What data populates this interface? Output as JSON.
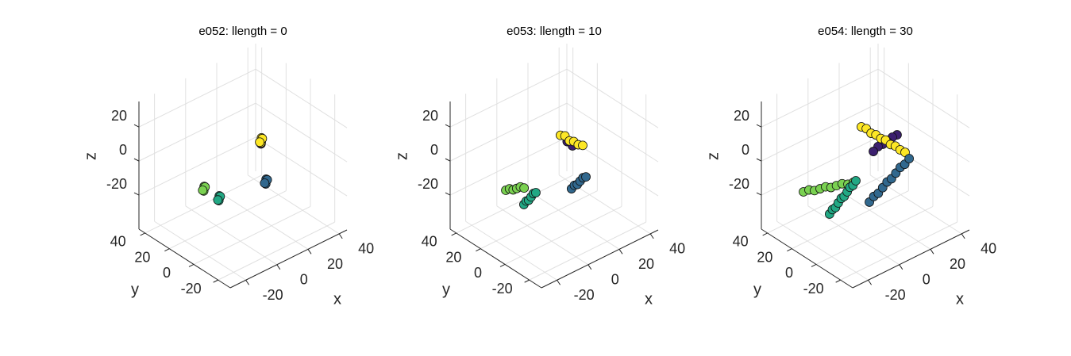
{
  "chart_data": [
    {
      "type": "scatter3d",
      "title": "e052: llength = 0",
      "xlabel": "x",
      "ylabel": "y",
      "zlabel": "z",
      "xlim": [
        -30,
        45
      ],
      "ylim": [
        -30,
        45
      ],
      "zlim": [
        -40,
        35
      ],
      "xticks": [
        -20,
        0,
        20,
        40
      ],
      "yticks": [
        -20,
        0,
        20,
        40
      ],
      "zticks": [
        -20,
        0,
        20
      ],
      "grid": true,
      "series": [
        {
          "color": "#3b1f6e",
          "x": [
            11,
            11.5,
            10.5
          ],
          "y": [
            -3,
            -2.5,
            -3.5
          ],
          "z": [
            14.5,
            15,
            14
          ]
        },
        {
          "color": "#fde725",
          "x": [
            10.4,
            11.2,
            9.6,
            10.8,
            9.9
          ],
          "y": [
            -3.8,
            -3,
            -4.5,
            -4.2,
            -3.2
          ],
          "z": [
            16.2,
            17,
            15.5,
            17.3,
            15.2
          ]
        },
        {
          "color": "#31688e",
          "x": [
            21.3,
            22,
            20.6,
            21.8,
            20.9
          ],
          "y": [
            6.2,
            7,
            5.5,
            5.8,
            6.8
          ],
          "z": [
            -17.5,
            -16.8,
            -18.2,
            -16.5,
            -18.5
          ]
        },
        {
          "color": "#7ad151",
          "x": [
            -5.2,
            -4.5,
            -5.9,
            -4.8,
            -5.6
          ],
          "y": [
            23.3,
            24,
            22.6,
            22.9,
            23.8
          ],
          "z": [
            -17.5,
            -16.8,
            -18.2,
            -16.5,
            -18.5
          ]
        },
        {
          "color": "#22a884",
          "x": [
            -1.5,
            -0.8,
            -2.2,
            -1.1,
            -1.9
          ],
          "y": [
            15.6,
            16.3,
            14.9,
            15.2,
            16.1
          ],
          "z": [
            -21.2,
            -20.5,
            -22,
            -20.2,
            -22.3
          ]
        }
      ]
    },
    {
      "type": "scatter3d",
      "title": "e053: llength = 10",
      "xlabel": "x",
      "ylabel": "y",
      "zlabel": "z",
      "xlim": [
        -30,
        45
      ],
      "ylim": [
        -30,
        45
      ],
      "zlim": [
        -40,
        35
      ],
      "xticks": [
        -20,
        0,
        20,
        40
      ],
      "yticks": [
        -20,
        0,
        20,
        40
      ],
      "zticks": [
        -20,
        0,
        20
      ],
      "grid": true,
      "series": [
        {
          "color": "#3b1f6e",
          "x": [
            10,
            10.5,
            9.5
          ],
          "y": [
            0,
            -2,
            -5
          ],
          "z": [
            14,
            14.5,
            14
          ]
        },
        {
          "color": "#fde725",
          "x": [
            9.2,
            9.5,
            9.8,
            10,
            10.3,
            10.6
          ],
          "y": [
            4.5,
            1.2,
            -2.1,
            -5.4,
            -8.7,
            -12
          ],
          "z": [
            16,
            17,
            15.5,
            16.5,
            16,
            17
          ]
        },
        {
          "color": "#31688e",
          "x": [
            15.2,
            17.7,
            20.2,
            22.6,
            25.1,
            27.6
          ],
          "y": [
            3.1,
            3.9,
            4.7,
            5.5,
            6.3,
            7.1
          ],
          "z": [
            -17.5,
            -17,
            -18,
            -17.5,
            -17,
            -18
          ]
        },
        {
          "color": "#7ad151",
          "x": [
            -9.5,
            -7.8,
            -6.1,
            -4.5,
            -2.8,
            -1.1
          ],
          "y": [
            25.5,
            24.6,
            23.8,
            22.9,
            22.1,
            21.2
          ],
          "z": [
            -17.5,
            -17,
            -18,
            -17.5,
            -17,
            -18
          ]
        },
        {
          "color": "#22a884",
          "x": [
            -7.4,
            -5.1,
            -2.8,
            -0.5,
            1.8,
            4.1
          ],
          "y": [
            13.3,
            14.3,
            15.3,
            16.2,
            17.2,
            18.2
          ],
          "z": [
            -21.2,
            -20.7,
            -21.7,
            -21.2,
            -20.7,
            -21.7
          ]
        }
      ]
    },
    {
      "type": "scatter3d",
      "title": "e054: llength = 30",
      "xlabel": "x",
      "ylabel": "y",
      "zlabel": "z",
      "xlim": [
        -30,
        45
      ],
      "ylim": [
        -30,
        45
      ],
      "zlim": [
        -40,
        35
      ],
      "xticks": [
        -20,
        0,
        20,
        40
      ],
      "yticks": [
        -20,
        0,
        20,
        40
      ],
      "zticks": [
        -20,
        0,
        20
      ],
      "grid": true,
      "series": [
        {
          "color": "#3b1f6e",
          "x": [
            22,
            18.5,
            15,
            11.5,
            8,
            4.5
          ],
          "y": [
            0,
            -0.6,
            -1.2,
            -1.7,
            -2.3,
            -2.9
          ],
          "z": [
            12.5,
            13,
            12,
            12.5,
            13,
            12
          ]
        },
        {
          "color": "#fde725",
          "x": [
            10,
            10.2,
            10.3,
            10.5,
            10.7,
            10.8,
            11,
            11.2,
            11.3,
            11.5
          ],
          "y": [
            14,
            10.2,
            6.4,
            2.7,
            -1.1,
            -4.9,
            -8.7,
            -12.4,
            -16.2,
            -20
          ],
          "z": [
            16.2,
            16.8,
            15.8,
            16.5,
            16,
            16.8,
            15.8,
            16.5,
            16,
            16.2
          ]
        },
        {
          "color": "#31688e",
          "x": [
            2.8,
            7.1,
            11.5,
            15.8,
            20.1,
            24.5,
            28.8,
            33.1,
            37.5,
            41.8
          ],
          "y": [
            -1.8,
            0.1,
            2,
            3.9,
            5.8,
            7.8,
            9.7,
            11.6,
            13.5,
            15.4
          ],
          "z": [
            -17.5,
            -17,
            -18,
            -17.5,
            -17,
            -18,
            -17.5,
            -17,
            -18,
            -17.5
          ]
        },
        {
          "color": "#7ad151",
          "x": [
            -15.3,
            -12.7,
            -10.1,
            -7.5,
            -4.9,
            -2.4,
            0.2,
            2.8,
            5.6,
            8.2
          ],
          "y": [
            29.2,
            28,
            26.8,
            25.5,
            24.3,
            23.1,
            21.9,
            20.6,
            19.4,
            18.2
          ],
          "z": [
            -17.5,
            -17,
            -18,
            -17.5,
            -17,
            -18,
            -17.5,
            -17,
            -18,
            -17.5
          ]
        },
        {
          "color": "#22a884",
          "x": [
            -14.8,
            -11.7,
            -8.5,
            -5.4,
            -2.2,
            0.9,
            4.1,
            7.2,
            10.4,
            13.5
          ],
          "y": [
            8.4,
            10,
            11.6,
            13.3,
            14.9,
            16.5,
            18.1,
            19.8,
            21.4,
            23
          ],
          "z": [
            -21.2,
            -20.7,
            -21.7,
            -21.2,
            -20.7,
            -21.7,
            -21.2,
            -20.7,
            -21.7,
            -21.2
          ]
        }
      ]
    }
  ]
}
